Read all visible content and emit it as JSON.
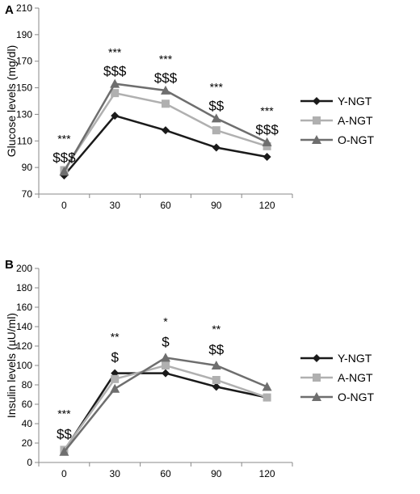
{
  "chart_data": [
    {
      "type": "line",
      "panel_label": "A",
      "x": [
        "0",
        "30",
        "60",
        "90",
        "120"
      ],
      "ylabel": "Glucose levels (mg/dl)",
      "ylim": [
        70,
        210
      ],
      "yticks": [
        70,
        90,
        110,
        130,
        150,
        170,
        190,
        210
      ],
      "grid": false,
      "legend_position": "right",
      "series": [
        {
          "name": "Y-NGT",
          "values": [
            84,
            129,
            118,
            105,
            98
          ],
          "color": "#1a1a1a",
          "marker": "diamond"
        },
        {
          "name": "A-NGT",
          "values": [
            88,
            146,
            138,
            118,
            106
          ],
          "color": "#b0b0b0",
          "marker": "square"
        },
        {
          "name": "O-NGT",
          "values": [
            87,
            153,
            148,
            127,
            109
          ],
          "color": "#6e6e6e",
          "marker": "triangle"
        }
      ],
      "annotations": [
        {
          "x": "0",
          "stars": "***",
          "dollars": "$$$"
        },
        {
          "x": "30",
          "stars": "***",
          "dollars": "$$$"
        },
        {
          "x": "60",
          "stars": "***",
          "dollars": "$$$"
        },
        {
          "x": "90",
          "stars": "***",
          "dollars": "$$"
        },
        {
          "x": "120",
          "stars": "***",
          "dollars": "$$$"
        }
      ]
    },
    {
      "type": "line",
      "panel_label": "B",
      "x": [
        "0",
        "30",
        "60",
        "90",
        "120"
      ],
      "ylabel": "Insulin levels (µU/ml)",
      "ylim": [
        0,
        200
      ],
      "yticks": [
        0,
        20,
        40,
        60,
        80,
        100,
        120,
        140,
        160,
        180,
        200
      ],
      "grid": false,
      "legend_position": "right",
      "series": [
        {
          "name": "Y-NGT",
          "values": [
            12,
            92,
            92,
            78,
            67
          ],
          "color": "#1a1a1a",
          "marker": "diamond"
        },
        {
          "name": "A-NGT",
          "values": [
            13,
            86,
            100,
            85,
            67
          ],
          "color": "#b0b0b0",
          "marker": "square"
        },
        {
          "name": "O-NGT",
          "values": [
            11,
            76,
            108,
            100,
            78
          ],
          "color": "#6e6e6e",
          "marker": "triangle"
        }
      ],
      "annotations": [
        {
          "x": "0",
          "stars": "***",
          "dollars": "$$"
        },
        {
          "x": "30",
          "stars": "**",
          "dollars": "$"
        },
        {
          "x": "60",
          "stars": "*",
          "dollars": "$"
        },
        {
          "x": "90",
          "stars": "**",
          "dollars": "$$"
        }
      ]
    }
  ]
}
